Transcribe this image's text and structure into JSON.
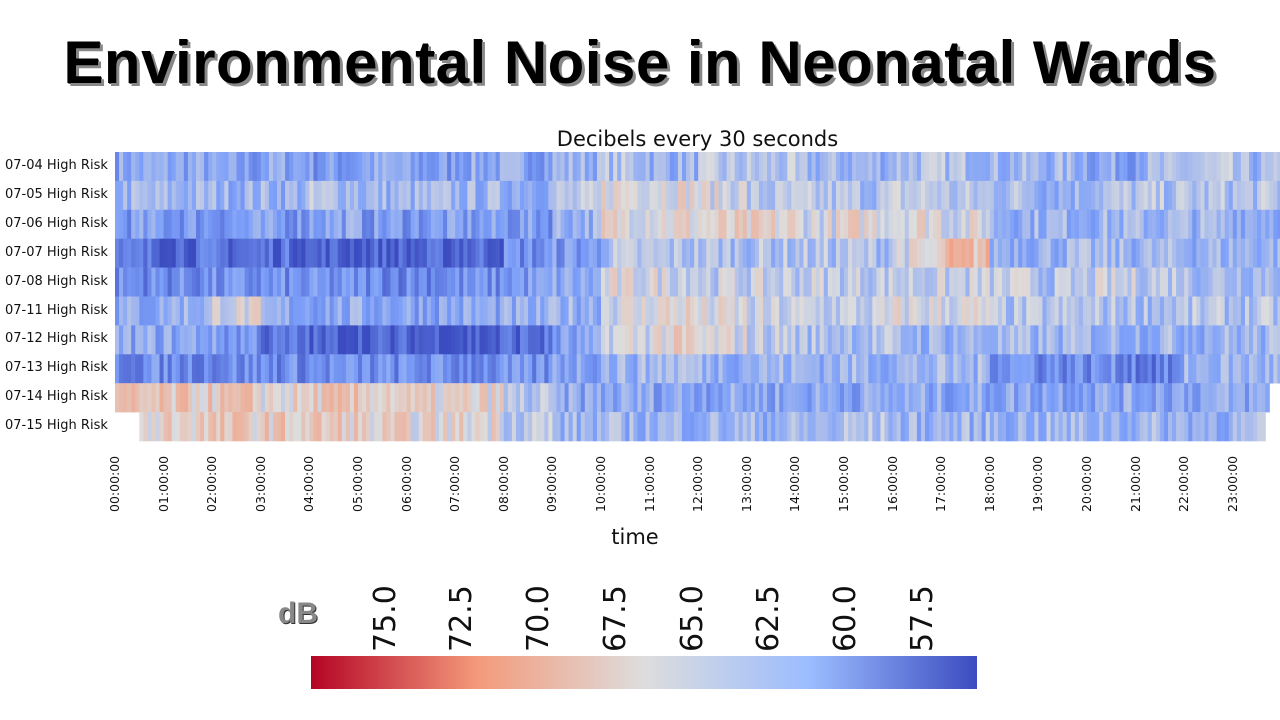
{
  "title": "Environmental Noise in Neonatal Wards",
  "colors": {
    "low": "#3b4cc0",
    "mid": "#dddddd",
    "high": "#b40426"
  },
  "chart_data": {
    "type": "heatmap",
    "title": "Decibels every 30 seconds",
    "xlabel": "time",
    "ylabel": "",
    "rows": [
      "07-04 High Risk",
      "07-05 High Risk",
      "07-06 High Risk",
      "07-07 High Risk",
      "07-08 High Risk",
      "07-11 High Risk",
      "07-12 High Risk",
      "07-13 High Risk",
      "07-14 High Risk",
      "07-15 High Risk"
    ],
    "x_ticks": [
      "00:00:00",
      "01:00:00",
      "02:00:00",
      "03:00:00",
      "04:00:00",
      "05:00:00",
      "06:00:00",
      "07:00:00",
      "08:00:00",
      "09:00:00",
      "10:00:00",
      "11:00:00",
      "12:00:00",
      "13:00:00",
      "14:00:00",
      "15:00:00",
      "16:00:00",
      "17:00:00",
      "18:00:00",
      "19:00:00",
      "20:00:00",
      "21:00:00",
      "22:00:00",
      "23:00:00"
    ],
    "values": [
      [
        62,
        62,
        61,
        62,
        61,
        62,
        61,
        62,
        62,
        63,
        64,
        63,
        64,
        64,
        63,
        63,
        64,
        64,
        63,
        63,
        62,
        63,
        64,
        63
      ],
      [
        63,
        63,
        63,
        63,
        64,
        63,
        63,
        63,
        63,
        64,
        67,
        67,
        66,
        64,
        64,
        64,
        65,
        64,
        64,
        63,
        64,
        64,
        64,
        64
      ],
      [
        61,
        61,
        61,
        61,
        62,
        61,
        61,
        61,
        61,
        63,
        67,
        67,
        67,
        67,
        66,
        67,
        67,
        66,
        63,
        63,
        63,
        63,
        63,
        63
      ],
      [
        58,
        58,
        58,
        58,
        57,
        57,
        57,
        58,
        60,
        61,
        64,
        64,
        64,
        64,
        64,
        64,
        66,
        69,
        63,
        63,
        63,
        63,
        63,
        63
      ],
      [
        60,
        60,
        60,
        60,
        60,
        60,
        60,
        60,
        61,
        62,
        66,
        66,
        65,
        65,
        65,
        65,
        65,
        65,
        65,
        64,
        65,
        65,
        64,
        64
      ],
      [
        62,
        63,
        66,
        62,
        62,
        62,
        62,
        62,
        62,
        63,
        66,
        67,
        66,
        65,
        65,
        65,
        66,
        66,
        64,
        64,
        64,
        64,
        64,
        64
      ],
      [
        62,
        62,
        61,
        58,
        57,
        57,
        57,
        57,
        58,
        61,
        66,
        67,
        66,
        65,
        64,
        64,
        63,
        63,
        63,
        63,
        63,
        63,
        63,
        63
      ],
      [
        60,
        60,
        60,
        60,
        60,
        60,
        60,
        60,
        60,
        62,
        63,
        64,
        63,
        63,
        63,
        63,
        63,
        63,
        61,
        60,
        60,
        59,
        63,
        63
      ],
      [
        68,
        68,
        68,
        67,
        68,
        68,
        67,
        67,
        64,
        62,
        62,
        62,
        62,
        62,
        62,
        62,
        62,
        62,
        62,
        62,
        62,
        62,
        62,
        62
      ],
      [
        67,
        68,
        68,
        68,
        68,
        67,
        67,
        67,
        65,
        63,
        63,
        63,
        63,
        63,
        63,
        64,
        63,
        63,
        63,
        63,
        63,
        63,
        63,
        63
      ]
    ],
    "row_start_hour": [
      0,
      0,
      0,
      0,
      0,
      0,
      0,
      0,
      0,
      0.5
    ],
    "row_end_hour": [
      24,
      24,
      24,
      24,
      24,
      24,
      24,
      24,
      23.7,
      23.6
    ],
    "colorbar": {
      "label": "dB",
      "ticks": [
        "75.0",
        "72.5",
        "70.0",
        "67.5",
        "65.0",
        "62.5",
        "60.0",
        "57.5"
      ],
      "range": [
        55.7,
        77.4
      ],
      "colormap": "coolwarm",
      "reversed": true
    }
  }
}
